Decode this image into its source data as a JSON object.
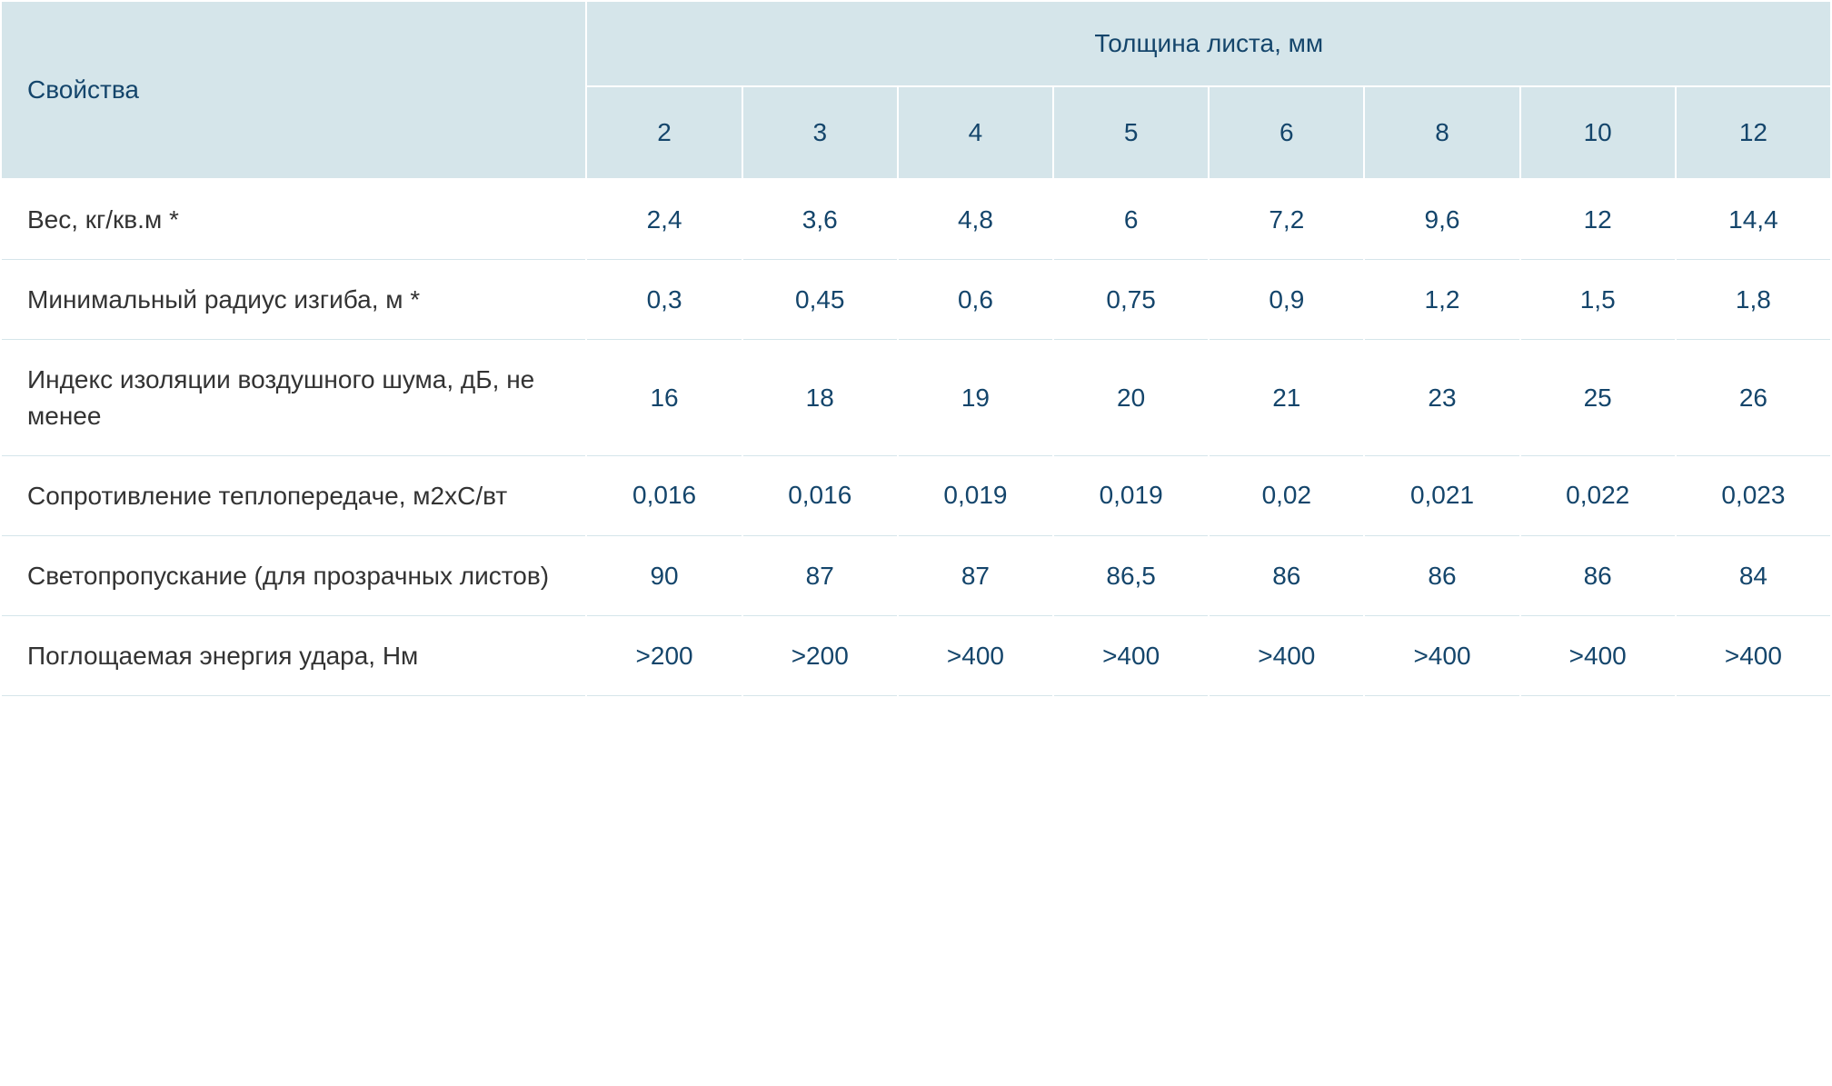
{
  "table": {
    "type": "table",
    "colors": {
      "header_bg": "#d5e5ea",
      "header_text": "#14456b",
      "row_label_text": "#333333",
      "cell_text": "#14456b",
      "cell_bg": "#ffffff",
      "border": "#ffffff",
      "row_divider": "#d5e5ea"
    },
    "typography": {
      "header_fontsize": 28,
      "cell_fontsize": 28,
      "font_family": "Trebuchet MS"
    },
    "headers": {
      "property": "Свойства",
      "thickness_title": "Толщина листа, мм",
      "thickness_values": [
        "2",
        "3",
        "4",
        "5",
        "6",
        "8",
        "10",
        "12"
      ]
    },
    "rows": [
      {
        "label": "Вес, кг/кв.м *",
        "values": [
          "2,4",
          "3,6",
          "4,8",
          "6",
          "7,2",
          "9,6",
          "12",
          "14,4"
        ]
      },
      {
        "label": "Минимальный радиус изгиба, м *",
        "values": [
          "0,3",
          "0,45",
          "0,6",
          "0,75",
          "0,9",
          "1,2",
          "1,5",
          "1,8"
        ]
      },
      {
        "label": "Индекс изоляции воздушного шума, дБ, не менее",
        "values": [
          "16",
          "18",
          "19",
          "20",
          "21",
          "23",
          "25",
          "26"
        ]
      },
      {
        "label": "Сопротивление теплопередаче, м2хС/вт",
        "values": [
          "0,016",
          "0,016",
          "0,019",
          "0,019",
          "0,02",
          "0,021",
          "0,022",
          "0,023"
        ]
      },
      {
        "label": "Светопропускание (для прозрачных листов)",
        "values": [
          "90",
          "87",
          "87",
          "86,5",
          "86",
          "86",
          "86",
          "84"
        ]
      },
      {
        "label": "Поглощаемая энергия удара, Нм",
        "values": [
          ">200",
          ">200",
          ">400",
          ">400",
          ">400",
          ">400",
          ">400",
          ">400"
        ]
      }
    ]
  }
}
